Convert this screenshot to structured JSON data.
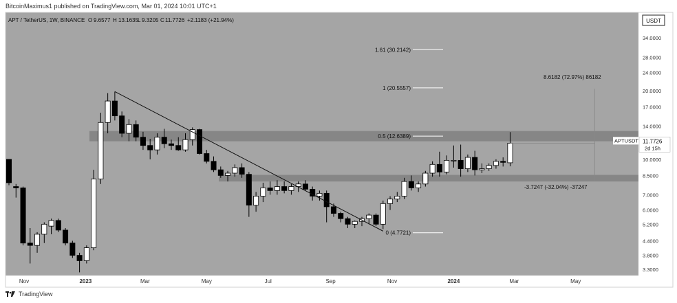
{
  "header": {
    "published": "BitcoinMaximus1 published on TradingView.com, Mar 01, 2024 10:01 UTC+1"
  },
  "legend": {
    "symbol": "APT / TetherUS, 1W, BINANCE",
    "o_label": "O",
    "o": "9.6577",
    "h_label": "H",
    "h": "13.1635",
    "l_label": "L",
    "l": "9.3205",
    "c_label": "C",
    "c": "11.7726",
    "change": "+2.1183 (+21.94%)"
  },
  "footer": {
    "brand": "TradingView"
  },
  "colors": {
    "background": "#a5a5a5",
    "up_candle": "#ffffff",
    "down_candle": "#000000",
    "zone": "#808080"
  },
  "chart_data": {
    "type": "candlestick",
    "quote_currency": "USDT",
    "interval": "1W",
    "y_scale": "log",
    "ylim": [
      3.1,
      44
    ],
    "x_ticks": [
      "Nov",
      "2023",
      "Mar",
      "May",
      "Jul",
      "Sep",
      "Nov",
      "2024",
      "Mar",
      "May"
    ],
    "y_ticks": [
      "40.0000",
      "34.0000",
      "28.0000",
      "24.0000",
      "20.0000",
      "17.0000",
      "14.0000",
      "10.0000",
      "8.5000",
      "7.0000",
      "6.0000",
      "5.2000",
      "4.4000",
      "3.8000",
      "3.3000"
    ],
    "y_tick_values": [
      40,
      34,
      28,
      24,
      20,
      17,
      14,
      10,
      8.5,
      7,
      6,
      5.2,
      4.4,
      3.8,
      3.3
    ],
    "candles": [
      {
        "date": "2022-10-17",
        "o": 10.0,
        "h": 10.0,
        "l": 7.7,
        "c": 7.9
      },
      {
        "date": "2022-10-24",
        "o": 7.6,
        "h": 7.8,
        "l": 6.8,
        "c": 7.5
      },
      {
        "date": "2022-10-31",
        "o": 7.5,
        "h": 7.6,
        "l": 4.2,
        "c": 4.3
      },
      {
        "date": "2022-11-07",
        "o": 4.3,
        "h": 5.0,
        "l": 3.5,
        "c": 4.2
      },
      {
        "date": "2022-11-14",
        "o": 4.2,
        "h": 4.8,
        "l": 3.9,
        "c": 4.7
      },
      {
        "date": "2022-11-21",
        "o": 4.7,
        "h": 5.3,
        "l": 4.3,
        "c": 5.2
      },
      {
        "date": "2022-11-28",
        "o": 5.1,
        "h": 5.5,
        "l": 4.7,
        "c": 5.4
      },
      {
        "date": "2022-12-05",
        "o": 5.4,
        "h": 5.5,
        "l": 4.8,
        "c": 4.9
      },
      {
        "date": "2022-12-12",
        "o": 4.9,
        "h": 5.0,
        "l": 4.2,
        "c": 4.3
      },
      {
        "date": "2022-12-19",
        "o": 4.3,
        "h": 4.4,
        "l": 3.7,
        "c": 3.8
      },
      {
        "date": "2022-12-26",
        "o": 3.8,
        "h": 3.9,
        "l": 3.2,
        "c": 3.6
      },
      {
        "date": "2023-01-02",
        "o": 3.6,
        "h": 4.2,
        "l": 3.5,
        "c": 4.1
      },
      {
        "date": "2023-01-09",
        "o": 4.1,
        "h": 9.0,
        "l": 4.0,
        "c": 8.2
      },
      {
        "date": "2023-01-16",
        "o": 8.2,
        "h": 16.0,
        "l": 7.8,
        "c": 14.5
      },
      {
        "date": "2023-01-23",
        "o": 14.5,
        "h": 19.5,
        "l": 13.0,
        "c": 18.0
      },
      {
        "date": "2023-01-30",
        "o": 18.0,
        "h": 19.8,
        "l": 14.8,
        "c": 15.5
      },
      {
        "date": "2023-02-06",
        "o": 15.5,
        "h": 16.2,
        "l": 12.5,
        "c": 13.0
      },
      {
        "date": "2023-02-13",
        "o": 13.0,
        "h": 15.0,
        "l": 12.0,
        "c": 14.2
      },
      {
        "date": "2023-02-20",
        "o": 14.2,
        "h": 14.8,
        "l": 12.0,
        "c": 12.5
      },
      {
        "date": "2023-02-27",
        "o": 12.5,
        "h": 13.2,
        "l": 11.0,
        "c": 11.5
      },
      {
        "date": "2023-03-06",
        "o": 11.5,
        "h": 12.3,
        "l": 10.0,
        "c": 11.0
      },
      {
        "date": "2023-03-13",
        "o": 11.0,
        "h": 13.0,
        "l": 10.5,
        "c": 12.5
      },
      {
        "date": "2023-03-20",
        "o": 12.5,
        "h": 13.6,
        "l": 11.2,
        "c": 11.7
      },
      {
        "date": "2023-03-27",
        "o": 11.7,
        "h": 12.2,
        "l": 11.0,
        "c": 11.5
      },
      {
        "date": "2023-04-03",
        "o": 11.5,
        "h": 12.5,
        "l": 10.9,
        "c": 11.0
      },
      {
        "date": "2023-04-10",
        "o": 11.0,
        "h": 13.0,
        "l": 10.8,
        "c": 12.2
      },
      {
        "date": "2023-04-17",
        "o": 12.2,
        "h": 13.8,
        "l": 11.5,
        "c": 13.5
      },
      {
        "date": "2023-04-24",
        "o": 13.5,
        "h": 13.6,
        "l": 10.5,
        "c": 10.6
      },
      {
        "date": "2023-05-01",
        "o": 10.6,
        "h": 11.0,
        "l": 9.6,
        "c": 9.8
      },
      {
        "date": "2023-05-08",
        "o": 9.8,
        "h": 10.3,
        "l": 8.8,
        "c": 9.0
      },
      {
        "date": "2023-05-15",
        "o": 9.0,
        "h": 9.3,
        "l": 8.3,
        "c": 8.5
      },
      {
        "date": "2023-05-22",
        "o": 8.5,
        "h": 8.9,
        "l": 8.0,
        "c": 8.7
      },
      {
        "date": "2023-05-29",
        "o": 8.7,
        "h": 9.5,
        "l": 8.4,
        "c": 9.2
      },
      {
        "date": "2023-06-05",
        "o": 9.2,
        "h": 9.6,
        "l": 8.3,
        "c": 8.6
      },
      {
        "date": "2023-06-12",
        "o": 8.6,
        "h": 8.8,
        "l": 5.6,
        "c": 6.3
      },
      {
        "date": "2023-06-19",
        "o": 6.3,
        "h": 7.2,
        "l": 5.9,
        "c": 6.9
      },
      {
        "date": "2023-06-26",
        "o": 6.9,
        "h": 7.9,
        "l": 6.5,
        "c": 7.5
      },
      {
        "date": "2023-07-03",
        "o": 7.5,
        "h": 8.0,
        "l": 7.0,
        "c": 7.3
      },
      {
        "date": "2023-07-10",
        "o": 7.3,
        "h": 8.1,
        "l": 7.0,
        "c": 7.6
      },
      {
        "date": "2023-07-17",
        "o": 7.6,
        "h": 8.0,
        "l": 7.1,
        "c": 7.3
      },
      {
        "date": "2023-07-24",
        "o": 7.3,
        "h": 7.8,
        "l": 7.0,
        "c": 7.6
      },
      {
        "date": "2023-07-31",
        "o": 7.6,
        "h": 8.0,
        "l": 7.2,
        "c": 7.8
      },
      {
        "date": "2023-08-07",
        "o": 7.8,
        "h": 8.1,
        "l": 7.3,
        "c": 7.4
      },
      {
        "date": "2023-08-14",
        "o": 7.4,
        "h": 7.6,
        "l": 6.6,
        "c": 6.9
      },
      {
        "date": "2023-08-21",
        "o": 6.9,
        "h": 7.3,
        "l": 6.6,
        "c": 7.1
      },
      {
        "date": "2023-08-28",
        "o": 7.1,
        "h": 7.3,
        "l": 5.3,
        "c": 6.2
      },
      {
        "date": "2023-09-04",
        "o": 6.2,
        "h": 6.4,
        "l": 5.6,
        "c": 5.8
      },
      {
        "date": "2023-09-11",
        "o": 5.8,
        "h": 5.9,
        "l": 5.3,
        "c": 5.5
      },
      {
        "date": "2023-09-18",
        "o": 5.5,
        "h": 5.6,
        "l": 5.0,
        "c": 5.2
      },
      {
        "date": "2023-09-25",
        "o": 5.2,
        "h": 5.4,
        "l": 5.0,
        "c": 5.35
      },
      {
        "date": "2023-10-02",
        "o": 5.35,
        "h": 5.6,
        "l": 5.1,
        "c": 5.5
      },
      {
        "date": "2023-10-09",
        "o": 5.5,
        "h": 5.8,
        "l": 5.2,
        "c": 5.7
      },
      {
        "date": "2023-10-16",
        "o": 5.7,
        "h": 5.8,
        "l": 5.1,
        "c": 5.2
      },
      {
        "date": "2023-10-23",
        "o": 5.2,
        "h": 6.6,
        "l": 4.95,
        "c": 6.4
      },
      {
        "date": "2023-10-30",
        "o": 6.4,
        "h": 6.9,
        "l": 6.0,
        "c": 6.7
      },
      {
        "date": "2023-11-06",
        "o": 6.7,
        "h": 7.2,
        "l": 6.5,
        "c": 6.9
      },
      {
        "date": "2023-11-13",
        "o": 6.9,
        "h": 8.3,
        "l": 6.7,
        "c": 8.0
      },
      {
        "date": "2023-11-20",
        "o": 8.0,
        "h": 8.5,
        "l": 7.3,
        "c": 7.5
      },
      {
        "date": "2023-11-27",
        "o": 7.5,
        "h": 8.0,
        "l": 7.2,
        "c": 7.8
      },
      {
        "date": "2023-12-04",
        "o": 7.8,
        "h": 8.9,
        "l": 7.6,
        "c": 8.7
      },
      {
        "date": "2023-12-11",
        "o": 8.7,
        "h": 9.8,
        "l": 8.4,
        "c": 9.5
      },
      {
        "date": "2023-12-18",
        "o": 9.5,
        "h": 10.8,
        "l": 8.4,
        "c": 8.8
      },
      {
        "date": "2023-12-25",
        "o": 8.8,
        "h": 10.4,
        "l": 8.6,
        "c": 9.9
      },
      {
        "date": "2024-01-01",
        "o": 9.9,
        "h": 11.5,
        "l": 9.2,
        "c": 9.9
      },
      {
        "date": "2024-01-08",
        "o": 9.9,
        "h": 11.6,
        "l": 8.4,
        "c": 9.1
      },
      {
        "date": "2024-01-15",
        "o": 9.1,
        "h": 10.5,
        "l": 8.8,
        "c": 10.2
      },
      {
        "date": "2024-01-22",
        "o": 10.2,
        "h": 10.9,
        "l": 8.5,
        "c": 9.0
      },
      {
        "date": "2024-01-29",
        "o": 9.0,
        "h": 9.6,
        "l": 8.7,
        "c": 9.1
      },
      {
        "date": "2024-02-05",
        "o": 9.1,
        "h": 9.6,
        "l": 8.9,
        "c": 9.4
      },
      {
        "date": "2024-02-12",
        "o": 9.4,
        "h": 10.0,
        "l": 9.1,
        "c": 9.8
      },
      {
        "date": "2024-02-19",
        "o": 9.8,
        "h": 10.2,
        "l": 9.3,
        "c": 9.7
      },
      {
        "date": "2024-02-26",
        "o": 9.66,
        "h": 13.16,
        "l": 9.32,
        "c": 11.77
      }
    ],
    "resistance_zones": [
      {
        "low": 12.0,
        "high": 13.3
      },
      {
        "low": 8.0,
        "high": 8.55
      }
    ],
    "trendline": {
      "from": {
        "date": "2023-01-30",
        "price": 19.8
      },
      "to": {
        "date": "2023-10-23",
        "price": 4.85
      }
    },
    "fib_levels": [
      {
        "label": "1.61 (30.2142)",
        "value": 30.2142
      },
      {
        "label": "1 (20.5557)",
        "value": 20.5557
      },
      {
        "label": "0.5 (12.6389)",
        "value": 12.6389
      },
      {
        "label": "0 (4.7721)",
        "value": 4.7721
      }
    ],
    "measure": {
      "upper": {
        "label": "8.6182 (72.97%) 86182",
        "value": 20.37
      },
      "lower": {
        "label": "-3.7247 (-32.04%) -37247",
        "value": 8.02
      },
      "date_from": "2024-02-26",
      "date_to": "2024-05-20"
    },
    "last_price": {
      "symbol": "APTUSDT",
      "value": "11.7726",
      "countdown": "2d 15h"
    }
  }
}
